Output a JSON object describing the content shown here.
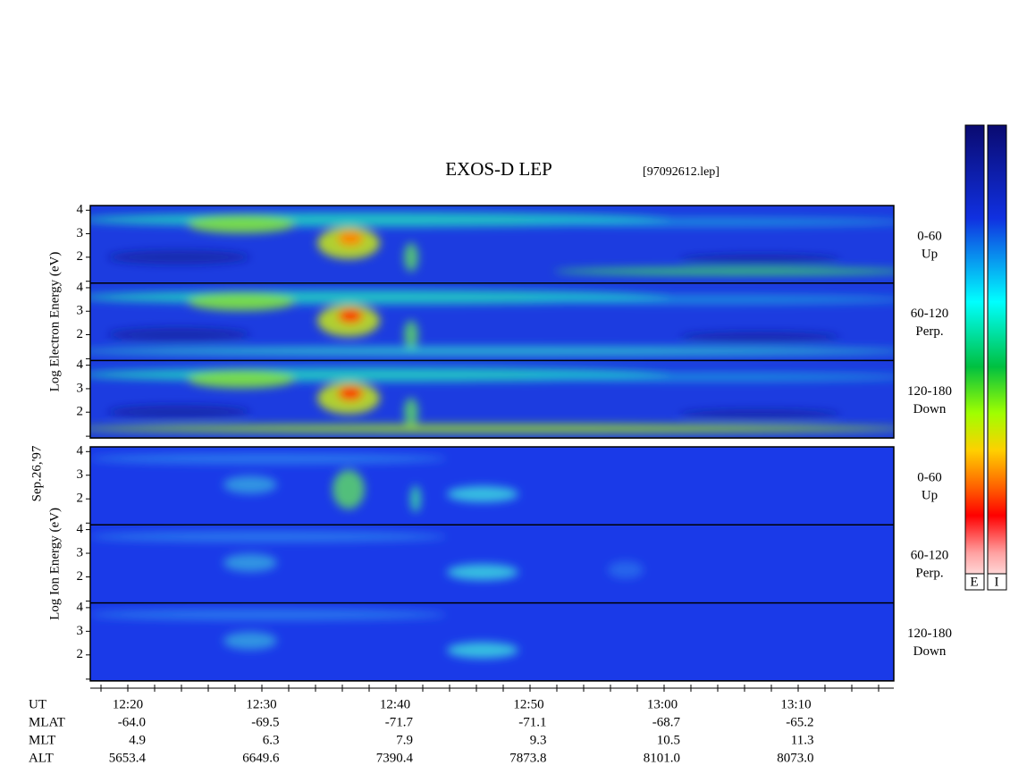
{
  "header": {
    "title": "EXOS-D LEP",
    "file": "[97092612.lep]"
  },
  "date": "Sep.26,'97",
  "groups": [
    {
      "label": "Log Electron Energy (eV)",
      "panels": [
        {
          "angle": "0-60",
          "direction": "Up"
        },
        {
          "angle": "60-120",
          "direction": "Perp."
        },
        {
          "angle": "120-180",
          "direction": "Down"
        }
      ]
    },
    {
      "label": "Log Ion Energy (eV)",
      "panels": [
        {
          "angle": "0-60",
          "direction": "Up"
        },
        {
          "angle": "60-120",
          "direction": "Perp."
        },
        {
          "angle": "120-180",
          "direction": "Down"
        }
      ]
    }
  ],
  "energy_axis": {
    "ylim": [
      0.9,
      4.2
    ],
    "yticks": [
      2,
      3,
      4
    ]
  },
  "colorbar": {
    "labels": [
      "E",
      "I"
    ]
  },
  "time_axis": {
    "rows": [
      {
        "label": "UT",
        "values": [
          "12:20",
          "12:30",
          "12:40",
          "12:50",
          "13:00",
          "13:10"
        ]
      },
      {
        "label": "MLAT",
        "values": [
          "-64.0",
          "-69.5",
          "-71.7",
          "-71.1",
          "-68.7",
          "-65.2"
        ]
      },
      {
        "label": "MLT",
        "values": [
          "4.9",
          "6.3",
          "7.9",
          "9.3",
          "10.5",
          "11.3"
        ]
      },
      {
        "label": "ALT",
        "values": [
          "5653.4",
          "6649.6",
          "7390.4",
          "7873.8",
          "8101.0",
          "8073.0"
        ]
      }
    ]
  }
}
